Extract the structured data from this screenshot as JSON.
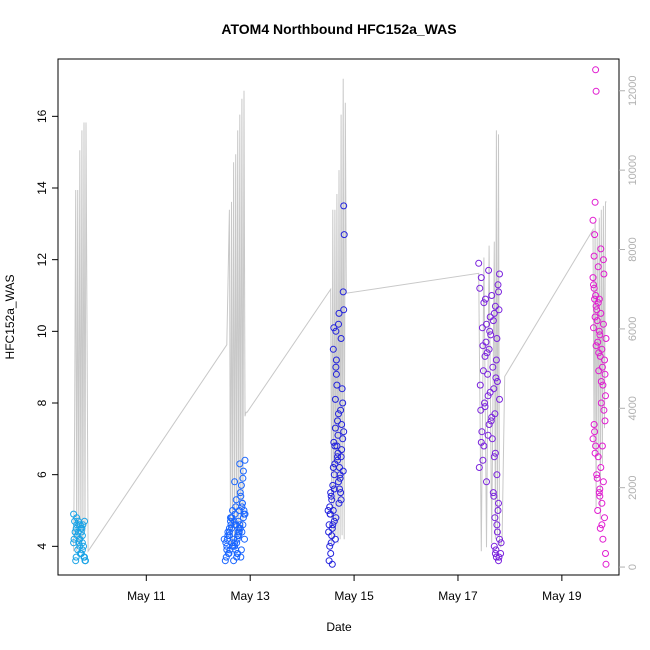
{
  "chart_data": {
    "type": "scatter",
    "title": "ATOM4 Northbound HFC152a_WAS",
    "xlabel": "Date",
    "ylabel": "HFC152a_WAS",
    "x_ticks": [
      "May 11",
      "May 13",
      "May 15",
      "May 17",
      "May 19"
    ],
    "x_tick_days": [
      11,
      13,
      15,
      17,
      19
    ],
    "xlim_days": [
      9.3,
      20.1
    ],
    "y_ticks": [
      4,
      6,
      8,
      10,
      12,
      14,
      16
    ],
    "ylim": [
      3.2,
      17.6
    ],
    "secondary_y_ticks": [
      "0",
      "2000",
      "4000",
      "6000",
      "8000",
      "10000",
      "12000"
    ],
    "secondary_ylim": [
      -200,
      12800
    ],
    "colors": {
      "flight1": "#1aa3e6",
      "flight2": "#1a66ff",
      "flight3": "#2222dd",
      "flight4": "#7a22dd",
      "flight5": "#e01ad0",
      "altitude_line": "#c8c8c8"
    },
    "series": [
      {
        "flight": 1,
        "color_key": "flight1",
        "x": [
          9.6,
          9.62,
          9.65,
          9.67,
          9.7,
          9.72,
          9.75,
          9.77,
          9.8,
          9.82,
          9.6,
          9.63,
          9.66,
          9.69,
          9.72,
          9.75,
          9.78,
          9.81,
          9.64,
          9.68,
          9.71,
          9.74,
          9.77,
          9.8,
          9.66,
          9.7,
          9.73,
          9.76,
          9.79,
          9.83,
          9.61,
          9.65,
          9.69,
          9.73,
          9.77,
          9.81
        ],
        "y": [
          4.9,
          4.7,
          4.5,
          4.3,
          4.6,
          4.2,
          4.4,
          3.9,
          3.7,
          3.6,
          4.1,
          4.4,
          4.8,
          4.7,
          4.0,
          3.8,
          4.6,
          4.7,
          3.6,
          3.9,
          4.2,
          4.5,
          4.3,
          3.7,
          4.6,
          4.1,
          3.8,
          4.5,
          4.0,
          3.6,
          4.2,
          3.7,
          4.4,
          4.6,
          4.1,
          3.7
        ]
      },
      {
        "flight": 2,
        "color_key": "flight2",
        "x": [
          12.5,
          12.55,
          12.6,
          12.65,
          12.7,
          12.75,
          12.8,
          12.85,
          12.9,
          12.52,
          12.57,
          12.62,
          12.67,
          12.72,
          12.77,
          12.82,
          12.87,
          12.53,
          12.58,
          12.63,
          12.68,
          12.73,
          12.78,
          12.83,
          12.88,
          12.54,
          12.6,
          12.66,
          12.71,
          12.76,
          12.81,
          12.86,
          12.56,
          12.61,
          12.69,
          12.74,
          12.79,
          12.84,
          12.9,
          12.59,
          12.64,
          12.7,
          12.75,
          12.8,
          12.85,
          12.55,
          12.62,
          12.68,
          12.73,
          12.78,
          12.83,
          12.88,
          12.57,
          12.65,
          12.72,
          12.77,
          12.82,
          12.87,
          12.6,
          12.66,
          12.71,
          12.76,
          12.81,
          12.86,
          12.89,
          12.63,
          12.7,
          12.79,
          12.84,
          12.74
        ],
        "y": [
          4.2,
          3.9,
          4.5,
          4.8,
          4.1,
          3.8,
          4.6,
          5.2,
          4.9,
          3.6,
          4.3,
          4.7,
          4.0,
          5.1,
          4.4,
          3.7,
          4.8,
          4.1,
          3.8,
          4.6,
          4.2,
          5.3,
          4.5,
          3.9,
          5.0,
          3.7,
          4.4,
          4.0,
          4.9,
          4.3,
          5.5,
          4.6,
          4.2,
          3.9,
          4.7,
          4.1,
          5.0,
          4.4,
          6.4,
          3.8,
          4.5,
          5.8,
          4.2,
          6.3,
          5.2,
          4.0,
          4.8,
          3.6,
          4.6,
          4.3,
          5.7,
          4.9,
          4.4,
          4.1,
          3.9,
          4.7,
          5.4,
          6.1,
          4.3,
          5.0,
          4.6,
          3.8,
          4.5,
          5.9,
          4.2,
          4.8,
          4.0,
          4.4,
          5.1,
          3.7
        ]
      },
      {
        "flight": 3,
        "color_key": "flight3",
        "x": [
          14.5,
          14.55,
          14.6,
          14.65,
          14.7,
          14.75,
          14.8,
          14.52,
          14.57,
          14.62,
          14.67,
          14.72,
          14.77,
          14.53,
          14.58,
          14.63,
          14.68,
          14.73,
          14.78,
          14.54,
          14.59,
          14.64,
          14.69,
          14.74,
          14.79,
          14.56,
          14.61,
          14.66,
          14.71,
          14.76,
          14.51,
          14.6,
          14.7,
          14.8,
          14.65,
          14.75,
          14.55,
          14.62,
          14.68,
          14.74,
          14.58,
          14.64,
          14.7,
          14.76,
          14.53,
          14.6,
          14.67,
          14.73,
          14.57,
          14.63,
          14.69,
          14.75,
          14.52,
          14.59,
          14.66,
          14.72,
          14.78,
          14.56,
          14.62,
          14.68,
          14.8,
          14.81,
          14.79,
          14.61,
          14.71,
          14.65,
          14.54,
          14.64
        ],
        "y": [
          5.0,
          5.5,
          6.2,
          4.8,
          5.8,
          6.5,
          7.2,
          4.6,
          5.3,
          6.0,
          6.8,
          5.6,
          8.4,
          5.1,
          4.5,
          6.3,
          7.5,
          5.9,
          7.0,
          4.9,
          5.7,
          8.1,
          6.6,
          7.8,
          6.1,
          5.4,
          6.9,
          8.8,
          5.2,
          7.4,
          4.4,
          9.5,
          10.2,
          10.6,
          9.0,
          9.8,
          3.8,
          4.7,
          6.4,
          5.5,
          3.5,
          4.2,
          7.7,
          6.7,
          4.0,
          5.0,
          8.5,
          6.0,
          4.3,
          6.8,
          7.1,
          5.3,
          3.6,
          4.6,
          9.2,
          6.2,
          8.0,
          4.1,
          5.6,
          6.5,
          13.5,
          12.7,
          11.1,
          10.1,
          10.5,
          10.0,
          4.9,
          7.3
        ]
      },
      {
        "flight": 4,
        "color_key": "flight4",
        "x": [
          17.4,
          17.45,
          17.5,
          17.55,
          17.6,
          17.65,
          17.7,
          17.75,
          17.8,
          17.42,
          17.47,
          17.52,
          17.57,
          17.62,
          17.67,
          17.72,
          17.77,
          17.43,
          17.48,
          17.53,
          17.58,
          17.63,
          17.68,
          17.73,
          17.78,
          17.44,
          17.49,
          17.54,
          17.59,
          17.64,
          17.69,
          17.74,
          17.79,
          17.46,
          17.51,
          17.56,
          17.61,
          17.66,
          17.71,
          17.76,
          17.41,
          17.5,
          17.6,
          17.7,
          17.8,
          17.45,
          17.55,
          17.65,
          17.75,
          17.48,
          17.58,
          17.68,
          17.78,
          17.52,
          17.62,
          17.72,
          17.7,
          17.72,
          17.74,
          17.76,
          17.78,
          17.71,
          17.73,
          17.75,
          17.77,
          17.79,
          17.69,
          17.8,
          17.82,
          17.83
        ],
        "y": [
          11.9,
          11.5,
          10.8,
          10.2,
          9.5,
          11.0,
          10.5,
          9.8,
          11.6,
          11.2,
          10.1,
          9.3,
          8.8,
          10.4,
          9.0,
          10.7,
          11.3,
          8.5,
          9.6,
          10.9,
          8.2,
          9.9,
          10.3,
          8.7,
          11.1,
          7.8,
          8.9,
          9.7,
          11.7,
          7.5,
          8.4,
          9.2,
          10.6,
          7.2,
          8.0,
          9.4,
          10.0,
          7.0,
          7.7,
          8.6,
          6.2,
          6.8,
          7.4,
          6.5,
          8.1,
          6.9,
          5.8,
          7.6,
          6.0,
          6.4,
          7.1,
          5.5,
          5.2,
          7.9,
          8.3,
          6.6,
          4.0,
          3.8,
          3.7,
          4.4,
          3.6,
          4.8,
          3.9,
          4.6,
          5.0,
          3.7,
          5.4,
          4.2,
          3.8,
          4.1
        ]
      },
      {
        "flight": 5,
        "color_key": "flight5",
        "x": [
          19.6,
          19.65,
          19.7,
          19.75,
          19.8,
          19.85,
          19.62,
          19.67,
          19.72,
          19.77,
          19.82,
          19.63,
          19.68,
          19.73,
          19.78,
          19.83,
          19.64,
          19.69,
          19.74,
          19.79,
          19.84,
          19.61,
          19.66,
          19.71,
          19.76,
          19.81,
          19.6,
          19.65,
          19.7,
          19.75,
          19.8,
          19.62,
          19.67,
          19.72,
          19.77,
          19.82,
          19.64,
          19.69,
          19.74,
          19.79,
          19.84,
          19.63,
          19.68,
          19.73,
          19.78,
          19.83,
          19.61,
          19.66,
          19.71,
          19.76,
          19.81,
          19.62,
          19.6,
          19.64,
          19.65,
          19.63,
          19.66,
          19.7,
          19.75,
          19.8,
          19.72,
          19.85,
          19.77,
          19.73
        ],
        "y": [
          11.5,
          11.0,
          10.8,
          10.5,
          10.2,
          9.8,
          11.2,
          10.6,
          10.0,
          9.5,
          9.2,
          10.9,
          10.3,
          9.9,
          9.0,
          8.8,
          10.4,
          9.7,
          9.3,
          8.5,
          8.2,
          10.1,
          9.6,
          8.9,
          8.0,
          7.8,
          7.0,
          6.8,
          6.5,
          6.2,
          5.8,
          7.4,
          6.0,
          5.5,
          5.2,
          4.8,
          6.6,
          5.0,
          4.5,
          4.2,
          3.8,
          7.2,
          5.9,
          5.4,
          6.8,
          7.5,
          11.3,
          10.7,
          9.4,
          8.6,
          11.6,
          12.1,
          13.1,
          13.6,
          17.3,
          12.7,
          16.7,
          11.8,
          12.3,
          12.0,
          10.9,
          3.5,
          4.6,
          5.6
        ]
      }
    ],
    "altitude_path": {
      "x": [
        9.6,
        9.62,
        9.64,
        9.66,
        9.68,
        9.7,
        9.72,
        9.74,
        9.76,
        9.78,
        9.8,
        9.82,
        9.84,
        9.88,
        12.55,
        12.6,
        12.62,
        12.64,
        12.66,
        12.68,
        12.7,
        12.72,
        12.74,
        12.76,
        12.78,
        12.8,
        12.82,
        12.84,
        12.86,
        12.88,
        12.9,
        12.92,
        12.94,
        14.55,
        14.57,
        14.59,
        14.61,
        14.63,
        14.65,
        14.67,
        14.69,
        14.71,
        14.73,
        14.75,
        14.77,
        14.79,
        14.81,
        14.83,
        14.85,
        17.4,
        17.45,
        17.5,
        17.55,
        17.6,
        17.65,
        17.7,
        17.72,
        17.74,
        17.76,
        17.78,
        17.8,
        17.82,
        17.85,
        17.9,
        19.6,
        19.62,
        19.64,
        19.66,
        19.68,
        19.7,
        19.72,
        19.74,
        19.76,
        19.78,
        19.8,
        19.82,
        19.84,
        19.86
      ],
      "alt": [
        400,
        3500,
        9500,
        400,
        9500,
        500,
        10500,
        600,
        11000,
        700,
        11200,
        900,
        11200,
        400,
        5600,
        9000,
        600,
        9200,
        500,
        10200,
        600,
        10400,
        700,
        11000,
        800,
        11400,
        900,
        11800,
        1000,
        12000,
        3800,
        3900,
        3900,
        7000,
        600,
        9000,
        700,
        9000,
        800,
        9400,
        600,
        10000,
        700,
        11400,
        800,
        12300,
        700,
        11700,
        6900,
        7400,
        400,
        7800,
        500,
        8100,
        600,
        8200,
        700,
        11000,
        800,
        10900,
        600,
        500,
        700,
        4800,
        8500,
        3000,
        8700,
        1500,
        8300,
        2800,
        8800,
        1200,
        9000,
        2600,
        9100,
        3500,
        9200,
        9200
      ]
    }
  }
}
